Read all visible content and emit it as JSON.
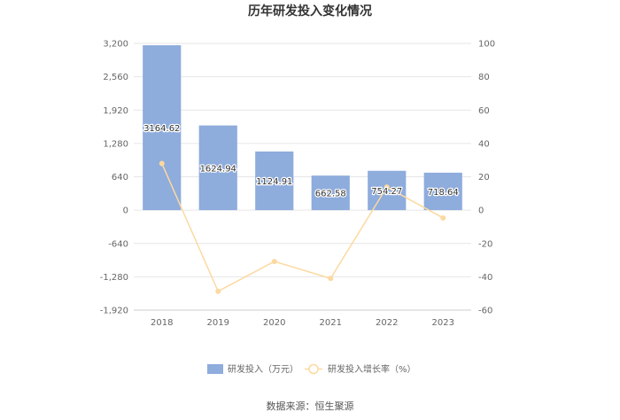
{
  "chart_data": {
    "type": "bar",
    "title": "历年研发投入变化情况",
    "source": "数据来源：恒生聚源",
    "categories": [
      "2018",
      "2019",
      "2020",
      "2021",
      "2022",
      "2023"
    ],
    "series": [
      {
        "name": "研发投入（万元）",
        "type": "bar",
        "axis": "left",
        "values": [
          3164.62,
          1624.94,
          1124.91,
          662.58,
          754.27,
          718.64
        ],
        "labels": [
          "3164.62",
          "1624.94",
          "1124.91",
          "662.58",
          "754.27",
          "718.64"
        ]
      },
      {
        "name": "研发投入增长率（%）",
        "type": "line",
        "axis": "right",
        "values": [
          28.0,
          -48.7,
          -30.8,
          -41.0,
          13.8,
          -4.7
        ]
      }
    ],
    "y_left": {
      "min": -1920,
      "max": 3200,
      "ticks": [
        3200,
        2560,
        1920,
        1280,
        640,
        0,
        -640,
        -1280,
        -1920
      ],
      "tick_labels": [
        "3,200",
        "2,560",
        "1,920",
        "1,280",
        "640",
        "0",
        "-640",
        "-1,280",
        "-1,920"
      ]
    },
    "y_right": {
      "min": -60,
      "max": 100,
      "ticks": [
        100,
        80,
        60,
        40,
        20,
        0,
        -20,
        -40,
        -60
      ]
    },
    "grid": true,
    "legend_position": "bottom",
    "colors": {
      "bar": "#8eacdc",
      "line": "#fcd9a0",
      "grid": "#e6e6e6",
      "text": "#666666",
      "title": "#333333"
    }
  }
}
